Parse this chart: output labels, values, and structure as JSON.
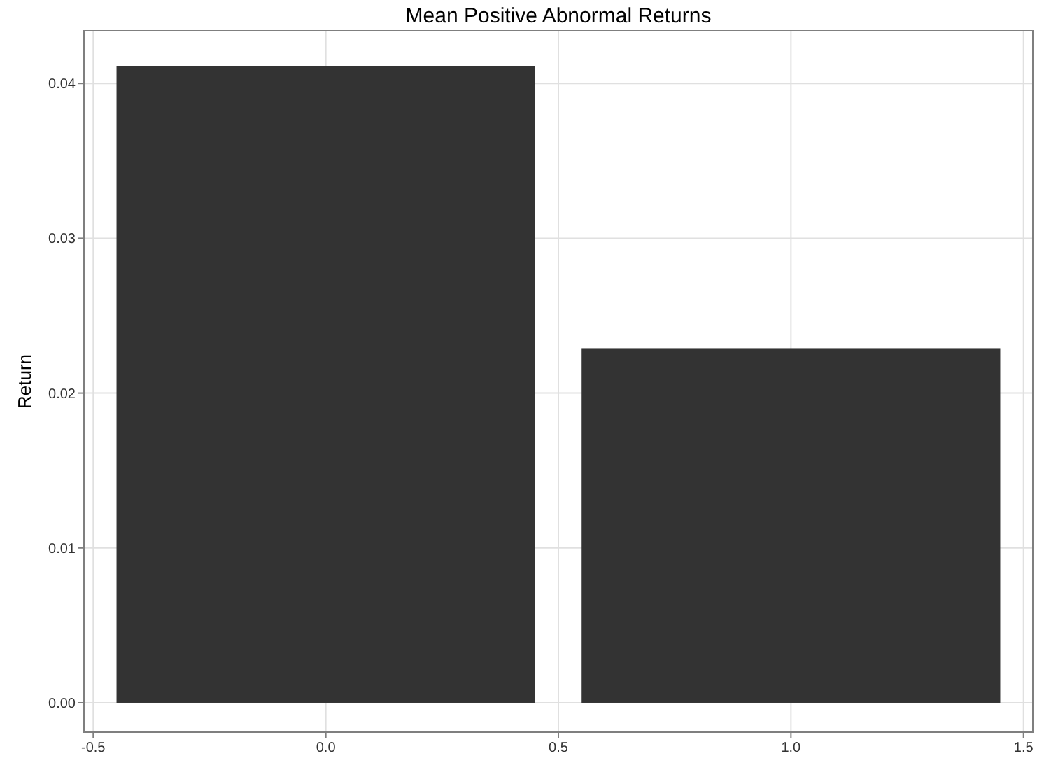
{
  "chart_data": {
    "type": "bar",
    "title": "Mean Positive Abnormal Returns",
    "ylabel": "Return",
    "x": [
      0,
      1
    ],
    "values": [
      0.0411,
      0.0229
    ],
    "color": "#333333",
    "xlim": [
      -0.52,
      1.52
    ],
    "xticks": [
      {
        "value": -0.5,
        "label": "-0.5"
      },
      {
        "value": 0,
        "label": "0.0"
      },
      {
        "value": 0.5,
        "label": "0.5"
      },
      {
        "value": 1,
        "label": "1.0"
      },
      {
        "value": 1.5,
        "label": "1.5"
      }
    ],
    "ylim": [
      -0.0019,
      0.0434
    ],
    "yticks": [
      {
        "value": 0,
        "label": "0.00"
      },
      {
        "value": 0.01,
        "label": "0.01"
      },
      {
        "value": 0.02,
        "label": "0.02"
      },
      {
        "value": 0.03,
        "label": "0.03"
      },
      {
        "value": 0.04,
        "label": "0.04"
      }
    ],
    "grid": true
  }
}
